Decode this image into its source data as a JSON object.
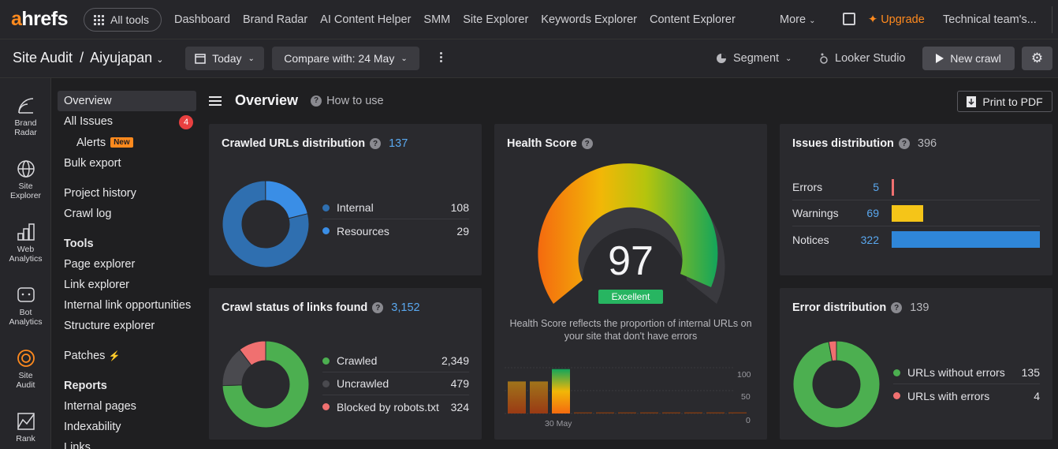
{
  "brand": {
    "logo_a": "a",
    "logo_rest": "hrefs"
  },
  "topnav": {
    "all_tools": "All tools",
    "links": [
      "Dashboard",
      "Brand Radar",
      "AI Content Helper",
      "SMM",
      "Site Explorer",
      "Keywords Explorer",
      "Content Explorer"
    ],
    "more": "More",
    "upgrade": "Upgrade",
    "team": "Technical team's..."
  },
  "subbar": {
    "crumb_tool": "Site Audit",
    "crumb_sep": "/",
    "crumb_project": "Aiyujapan",
    "date_btn": "Today",
    "compare_btn": "Compare with: 24 May",
    "segment": "Segment",
    "looker": "Looker Studio",
    "new_crawl": "New crawl"
  },
  "rail": [
    {
      "label_1": "Brand",
      "label_2": "Radar"
    },
    {
      "label_1": "Site",
      "label_2": "Explorer"
    },
    {
      "label_1": "Web",
      "label_2": "Analytics"
    },
    {
      "label_1": "Bot",
      "label_2": "Analytics"
    },
    {
      "label_1": "Site",
      "label_2": "Audit"
    },
    {
      "label_1": "Rank",
      "label_2": ""
    }
  ],
  "sidemenu": {
    "overview": "Overview",
    "all_issues": "All Issues",
    "all_issues_count": "4",
    "alerts": "Alerts",
    "alerts_badge": "New",
    "bulk_export": "Bulk export",
    "project_history": "Project history",
    "crawl_log": "Crawl log",
    "tools_head": "Tools",
    "page_explorer": "Page explorer",
    "link_explorer": "Link explorer",
    "internal_link_opps": "Internal link opportunities",
    "structure_explorer": "Structure explorer",
    "patches": "Patches",
    "reports_head": "Reports",
    "internal_pages": "Internal pages",
    "indexability": "Indexability",
    "links": "Links"
  },
  "page": {
    "title": "Overview",
    "how_to": "How to use",
    "print_pdf": "Print to PDF"
  },
  "crawled_urls": {
    "title": "Crawled URLs distribution",
    "total": "137",
    "items": [
      {
        "label": "Internal",
        "value": "108",
        "color": "#2f6fb0"
      },
      {
        "label": "Resources",
        "value": "29",
        "color": "#3a8ee6"
      }
    ]
  },
  "crawl_status": {
    "title": "Crawl status of links found",
    "total": "3,152",
    "items": [
      {
        "label": "Crawled",
        "value": "2,349",
        "color": "#4caf50"
      },
      {
        "label": "Uncrawled",
        "value": "479",
        "color": "#4a4a4f"
      },
      {
        "label": "Blocked by robots.txt",
        "value": "324",
        "color": "#f07070"
      }
    ]
  },
  "health": {
    "title": "Health Score",
    "score": "97",
    "badge": "Excellent",
    "description": "Health Score reflects the proportion of internal URLs on your site that don't have errors",
    "date_label": "30 May",
    "y_ticks": [
      "100",
      "50",
      "0"
    ]
  },
  "issues": {
    "title": "Issues distribution",
    "total": "396",
    "rows": [
      {
        "label": "Errors",
        "value": "5",
        "color": "#f07070"
      },
      {
        "label": "Warnings",
        "value": "69",
        "color": "#f5c518"
      },
      {
        "label": "Notices",
        "value": "322",
        "color": "#2f86d8"
      }
    ]
  },
  "error_dist": {
    "title": "Error distribution",
    "total": "139",
    "items": [
      {
        "label": "URLs without errors",
        "value": "135",
        "color": "#4caf50"
      },
      {
        "label": "URLs with errors",
        "value": "4",
        "color": "#f07070"
      }
    ]
  },
  "chart_data": [
    {
      "type": "pie",
      "title": "Crawled URLs distribution",
      "categories": [
        "Internal",
        "Resources"
      ],
      "values": [
        108,
        29
      ]
    },
    {
      "type": "pie",
      "title": "Crawl status of links found",
      "categories": [
        "Crawled",
        "Uncrawled",
        "Blocked by robots.txt"
      ],
      "values": [
        2349,
        479,
        324
      ]
    },
    {
      "type": "bar",
      "title": "Issues distribution",
      "categories": [
        "Errors",
        "Warnings",
        "Notices"
      ],
      "values": [
        5,
        69,
        322
      ]
    },
    {
      "type": "pie",
      "title": "Error distribution",
      "categories": [
        "URLs without errors",
        "URLs with errors"
      ],
      "values": [
        135,
        4
      ]
    },
    {
      "type": "bar",
      "title": "Health Score",
      "x": [
        "",
        "",
        "30 May",
        "",
        "",
        "",
        "",
        "",
        "",
        "",
        ""
      ],
      "values": [
        70,
        70,
        97,
        0,
        0,
        0,
        0,
        0,
        0,
        0,
        0
      ],
      "ylim": [
        0,
        100
      ]
    }
  ]
}
